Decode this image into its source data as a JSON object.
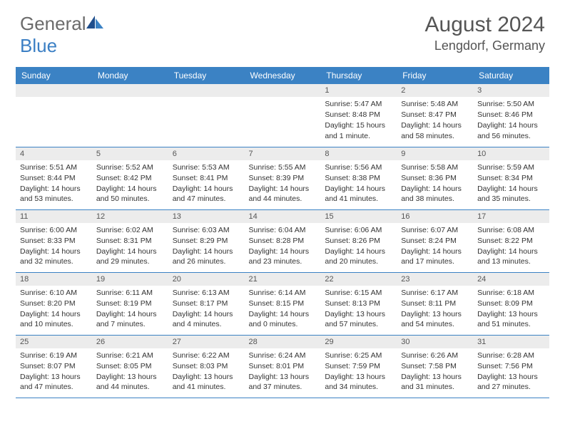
{
  "logo": {
    "text_general": "General",
    "text_blue": "Blue"
  },
  "header": {
    "month_title": "August 2024",
    "location": "Lengdorf, Germany"
  },
  "colors": {
    "header_bg": "#3b82c4",
    "header_text": "#ffffff",
    "daynum_bg": "#ececec",
    "cell_text": "#333333",
    "logo_gray": "#6b6b6b",
    "logo_blue": "#3b7fc4"
  },
  "day_headers": [
    "Sunday",
    "Monday",
    "Tuesday",
    "Wednesday",
    "Thursday",
    "Friday",
    "Saturday"
  ],
  "weeks": [
    [
      null,
      null,
      null,
      null,
      {
        "n": "1",
        "sr": "5:47 AM",
        "ss": "8:48 PM",
        "dl": "15 hours and 1 minute."
      },
      {
        "n": "2",
        "sr": "5:48 AM",
        "ss": "8:47 PM",
        "dl": "14 hours and 58 minutes."
      },
      {
        "n": "3",
        "sr": "5:50 AM",
        "ss": "8:46 PM",
        "dl": "14 hours and 56 minutes."
      }
    ],
    [
      {
        "n": "4",
        "sr": "5:51 AM",
        "ss": "8:44 PM",
        "dl": "14 hours and 53 minutes."
      },
      {
        "n": "5",
        "sr": "5:52 AM",
        "ss": "8:42 PM",
        "dl": "14 hours and 50 minutes."
      },
      {
        "n": "6",
        "sr": "5:53 AM",
        "ss": "8:41 PM",
        "dl": "14 hours and 47 minutes."
      },
      {
        "n": "7",
        "sr": "5:55 AM",
        "ss": "8:39 PM",
        "dl": "14 hours and 44 minutes."
      },
      {
        "n": "8",
        "sr": "5:56 AM",
        "ss": "8:38 PM",
        "dl": "14 hours and 41 minutes."
      },
      {
        "n": "9",
        "sr": "5:58 AM",
        "ss": "8:36 PM",
        "dl": "14 hours and 38 minutes."
      },
      {
        "n": "10",
        "sr": "5:59 AM",
        "ss": "8:34 PM",
        "dl": "14 hours and 35 minutes."
      }
    ],
    [
      {
        "n": "11",
        "sr": "6:00 AM",
        "ss": "8:33 PM",
        "dl": "14 hours and 32 minutes."
      },
      {
        "n": "12",
        "sr": "6:02 AM",
        "ss": "8:31 PM",
        "dl": "14 hours and 29 minutes."
      },
      {
        "n": "13",
        "sr": "6:03 AM",
        "ss": "8:29 PM",
        "dl": "14 hours and 26 minutes."
      },
      {
        "n": "14",
        "sr": "6:04 AM",
        "ss": "8:28 PM",
        "dl": "14 hours and 23 minutes."
      },
      {
        "n": "15",
        "sr": "6:06 AM",
        "ss": "8:26 PM",
        "dl": "14 hours and 20 minutes."
      },
      {
        "n": "16",
        "sr": "6:07 AM",
        "ss": "8:24 PM",
        "dl": "14 hours and 17 minutes."
      },
      {
        "n": "17",
        "sr": "6:08 AM",
        "ss": "8:22 PM",
        "dl": "14 hours and 13 minutes."
      }
    ],
    [
      {
        "n": "18",
        "sr": "6:10 AM",
        "ss": "8:20 PM",
        "dl": "14 hours and 10 minutes."
      },
      {
        "n": "19",
        "sr": "6:11 AM",
        "ss": "8:19 PM",
        "dl": "14 hours and 7 minutes."
      },
      {
        "n": "20",
        "sr": "6:13 AM",
        "ss": "8:17 PM",
        "dl": "14 hours and 4 minutes."
      },
      {
        "n": "21",
        "sr": "6:14 AM",
        "ss": "8:15 PM",
        "dl": "14 hours and 0 minutes."
      },
      {
        "n": "22",
        "sr": "6:15 AM",
        "ss": "8:13 PM",
        "dl": "13 hours and 57 minutes."
      },
      {
        "n": "23",
        "sr": "6:17 AM",
        "ss": "8:11 PM",
        "dl": "13 hours and 54 minutes."
      },
      {
        "n": "24",
        "sr": "6:18 AM",
        "ss": "8:09 PM",
        "dl": "13 hours and 51 minutes."
      }
    ],
    [
      {
        "n": "25",
        "sr": "6:19 AM",
        "ss": "8:07 PM",
        "dl": "13 hours and 47 minutes."
      },
      {
        "n": "26",
        "sr": "6:21 AM",
        "ss": "8:05 PM",
        "dl": "13 hours and 44 minutes."
      },
      {
        "n": "27",
        "sr": "6:22 AM",
        "ss": "8:03 PM",
        "dl": "13 hours and 41 minutes."
      },
      {
        "n": "28",
        "sr": "6:24 AM",
        "ss": "8:01 PM",
        "dl": "13 hours and 37 minutes."
      },
      {
        "n": "29",
        "sr": "6:25 AM",
        "ss": "7:59 PM",
        "dl": "13 hours and 34 minutes."
      },
      {
        "n": "30",
        "sr": "6:26 AM",
        "ss": "7:58 PM",
        "dl": "13 hours and 31 minutes."
      },
      {
        "n": "31",
        "sr": "6:28 AM",
        "ss": "7:56 PM",
        "dl": "13 hours and 27 minutes."
      }
    ]
  ],
  "labels": {
    "sunrise": "Sunrise: ",
    "sunset": "Sunset: ",
    "daylight": "Daylight: "
  }
}
